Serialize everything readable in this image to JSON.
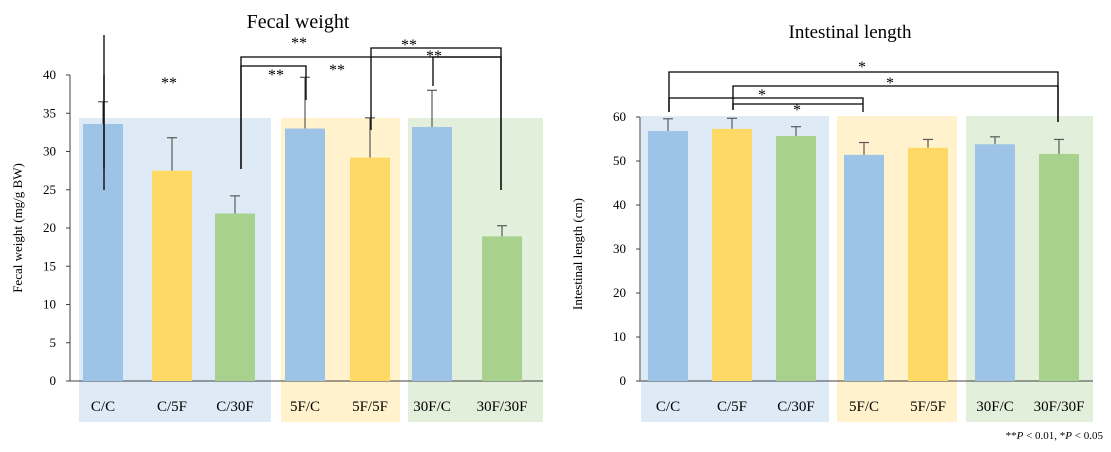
{
  "footnote": {
    "parts": [
      "**",
      "P",
      " < 0.01, *",
      "P",
      " < 0.05"
    ]
  },
  "colors": {
    "blue": "#9dc3e6",
    "yellow": "#ffd966",
    "green": "#a9d18e",
    "bg_blue": "#deebf7",
    "bg_yellow": "#fff2cc",
    "bg_green": "#e2efda",
    "errorbar": "#595959",
    "bracket": "#000000"
  },
  "chart_data": [
    {
      "type": "bar",
      "title": "Fecal weight",
      "ylabel": "Fecal weight (mg/g BW)",
      "xlabel": "",
      "ylim": [
        0,
        40
      ],
      "yticks": [
        0,
        5,
        10,
        15,
        20,
        25,
        30,
        35,
        40
      ],
      "grid": false,
      "categories": [
        "C/C",
        "C/5F",
        "C/30F",
        "5F/C",
        "5F/5F",
        "30F/C",
        "30F/30F"
      ],
      "values": [
        33.6,
        27.5,
        21.9,
        33.0,
        29.2,
        33.2,
        18.9
      ],
      "errors": [
        2.9,
        4.3,
        2.3,
        6.7,
        5.2,
        4.8,
        1.4
      ],
      "bar_colors": [
        "blue",
        "yellow",
        "green",
        "blue",
        "yellow",
        "blue",
        "green"
      ],
      "groups": [
        {
          "color": "bg_blue",
          "members": [
            0,
            1,
            2
          ]
        },
        {
          "color": "bg_yellow",
          "members": [
            3,
            4
          ]
        },
        {
          "color": "bg_green",
          "members": [
            5,
            6
          ]
        }
      ],
      "significance": [
        {
          "from": "C/C",
          "to": "C/30F",
          "label": "**"
        },
        {
          "from": "C/C",
          "to": "30F/30F",
          "label": "**"
        },
        {
          "from": "C/30F",
          "to": "5F/C",
          "label": "**"
        },
        {
          "from": "C/30F",
          "to": "30F/30F",
          "label": "**"
        },
        {
          "from": "5F/5F",
          "to": "30F/30F",
          "label": "**"
        },
        {
          "from": "30F/C",
          "to": "30F/30F",
          "label": "**"
        }
      ]
    },
    {
      "type": "bar",
      "title": "Intestinal length",
      "ylabel": "Intestinal length (cm)",
      "xlabel": "",
      "ylim": [
        0,
        60
      ],
      "yticks": [
        0,
        10,
        20,
        30,
        40,
        50,
        60
      ],
      "grid": false,
      "categories": [
        "C/C",
        "C/5F",
        "C/30F",
        "5F/C",
        "5F/5F",
        "30F/C",
        "30F/30F"
      ],
      "values": [
        56.8,
        57.3,
        55.7,
        51.4,
        53.0,
        53.8,
        51.6
      ],
      "errors": [
        2.8,
        2.4,
        2.1,
        2.8,
        1.9,
        1.7,
        3.3
      ],
      "bar_colors": [
        "blue",
        "yellow",
        "green",
        "blue",
        "yellow",
        "blue",
        "green"
      ],
      "groups": [
        {
          "color": "bg_blue",
          "members": [
            0,
            1,
            2
          ]
        },
        {
          "color": "bg_yellow",
          "members": [
            3,
            4
          ]
        },
        {
          "color": "bg_green",
          "members": [
            5,
            6
          ]
        }
      ],
      "significance": [
        {
          "from": "C/C",
          "to": "30F/30F",
          "label": "*"
        },
        {
          "from": "C/5F",
          "to": "30F/30F",
          "label": "*"
        },
        {
          "from": "C/C",
          "to": "5F/C",
          "label": "*"
        },
        {
          "from": "C/5F",
          "to": "5F/C",
          "label": "*"
        }
      ]
    }
  ]
}
